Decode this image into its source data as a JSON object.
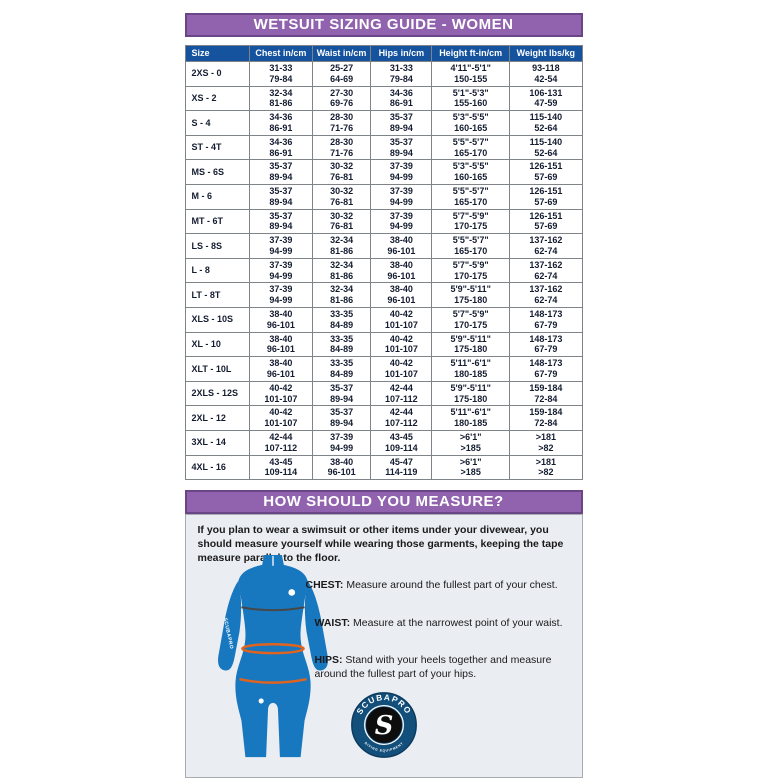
{
  "title": "WETSUIT SIZING GUIDE - WOMEN",
  "table": {
    "headers": [
      "Size",
      "Chest in/cm",
      "Waist in/cm",
      "Hips in/cm",
      "Height ft-in/cm",
      "Weight lbs/kg"
    ],
    "rows": [
      [
        "2XS - 0",
        "31-33\n79-84",
        "25-27\n64-69",
        "31-33\n79-84",
        "4'11\"-5'1\"\n150-155",
        "93-118\n42-54"
      ],
      [
        "XS - 2",
        "32-34\n81-86",
        "27-30\n69-76",
        "34-36\n86-91",
        "5'1\"-5'3\"\n155-160",
        "106-131\n47-59"
      ],
      [
        "S - 4",
        "34-36\n86-91",
        "28-30\n71-76",
        "35-37\n89-94",
        "5'3\"-5'5\"\n160-165",
        "115-140\n52-64"
      ],
      [
        "ST - 4T",
        "34-36\n86-91",
        "28-30\n71-76",
        "35-37\n89-94",
        "5'5\"-5'7\"\n165-170",
        "115-140\n52-64"
      ],
      [
        "MS - 6S",
        "35-37\n89-94",
        "30-32\n76-81",
        "37-39\n94-99",
        "5'3\"-5'5\"\n160-165",
        "126-151\n57-69"
      ],
      [
        "M - 6",
        "35-37\n89-94",
        "30-32\n76-81",
        "37-39\n94-99",
        "5'5\"-5'7\"\n165-170",
        "126-151\n57-69"
      ],
      [
        "MT - 6T",
        "35-37\n89-94",
        "30-32\n76-81",
        "37-39\n94-99",
        "5'7\"-5'9\"\n170-175",
        "126-151\n57-69"
      ],
      [
        "LS - 8S",
        "37-39\n94-99",
        "32-34\n81-86",
        "38-40\n96-101",
        "5'5\"-5'7\"\n165-170",
        "137-162\n62-74"
      ],
      [
        "L - 8",
        "37-39\n94-99",
        "32-34\n81-86",
        "38-40\n96-101",
        "5'7\"-5'9\"\n170-175",
        "137-162\n62-74"
      ],
      [
        "LT - 8T",
        "37-39\n94-99",
        "32-34\n81-86",
        "38-40\n96-101",
        "5'9\"-5'11\"\n175-180",
        "137-162\n62-74"
      ],
      [
        "XLS - 10S",
        "38-40\n96-101",
        "33-35\n84-89",
        "40-42\n101-107",
        "5'7\"-5'9\"\n170-175",
        "148-173\n67-79"
      ],
      [
        "XL - 10",
        "38-40\n96-101",
        "33-35\n84-89",
        "40-42\n101-107",
        "5'9\"-5'11\"\n175-180",
        "148-173\n67-79"
      ],
      [
        "XLT - 10L",
        "38-40\n96-101",
        "33-35\n84-89",
        "40-42\n101-107",
        "5'11\"-6'1\"\n180-185",
        "148-173\n67-79"
      ],
      [
        "2XLS - 12S",
        "40-42\n101-107",
        "35-37\n89-94",
        "42-44\n107-112",
        "5'9\"-5'11\"\n175-180",
        "159-184\n72-84"
      ],
      [
        "2XL - 12",
        "40-42\n101-107",
        "35-37\n89-94",
        "42-44\n107-112",
        "5'11\"-6'1\"\n180-185",
        "159-184\n72-84"
      ],
      [
        "3XL - 14",
        "42-44\n107-112",
        "37-39\n94-99",
        "43-45\n109-114",
        ">6'1\"\n>185",
        ">181\n>82"
      ],
      [
        "4XL - 16",
        "43-45\n109-114",
        "38-40\n96-101",
        "45-47\n114-119",
        ">6'1\"\n>185",
        ">181\n>82"
      ]
    ]
  },
  "measure": {
    "title": "HOW SHOULD YOU MEASURE?",
    "intro": "If you plan to wear a swimsuit or other items under your divewear, you should measure yourself while wearing those garments, keeping the tape measure parallel to the floor.",
    "instructions": [
      {
        "label": "CHEST:",
        "text": "Measure around the fullest part of your chest."
      },
      {
        "label": "WAIST:",
        "text": "Measure at the narrowest point of your waist."
      },
      {
        "label": "HIPS:",
        "text": "Stand with your heels together and measure around the fullest part of your hips."
      }
    ]
  },
  "figure": {
    "suit_arm_text": "SCUBAPRO"
  },
  "logo": {
    "brand": "SCUBAPRO",
    "monogram": "S",
    "ring_text": "DIVING EQUIPMENT"
  },
  "colors": {
    "banner_purple": "#9163ae",
    "banner_border": "#6b4687",
    "header_blue": "#15539f",
    "suit_blue": "#1878bf",
    "measure_line_orange": "#e0631f",
    "section_bg": "#eaeef3",
    "logo_ring_blue": "#124f7b"
  }
}
